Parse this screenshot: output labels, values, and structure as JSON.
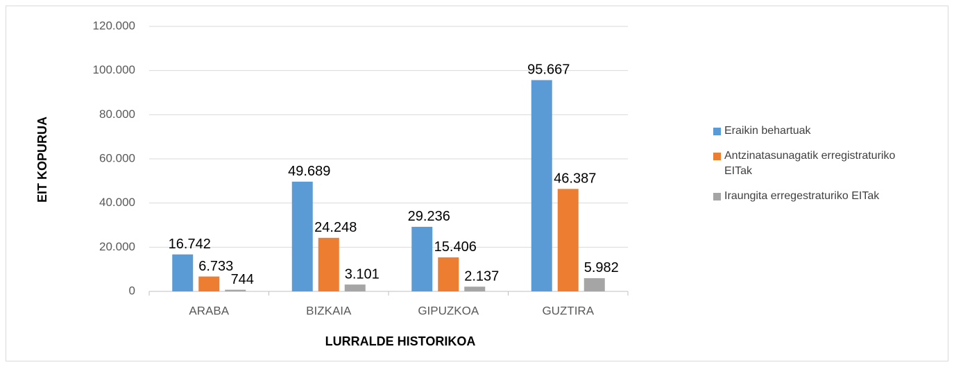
{
  "chart_data": {
    "type": "bar",
    "xlabel": "LURRALDE HISTORIKOA",
    "ylabel": "EIT KOPURUA",
    "categories": [
      "ARABA",
      "BIZKAIA",
      "GIPUZKOA",
      "GUZTIRA"
    ],
    "series": [
      {
        "name": "Eraikin behartuak",
        "color": "#5b9bd5",
        "values": [
          16742,
          49689,
          29236,
          95667
        ],
        "value_labels": [
          "16.742",
          "49.689",
          "29.236",
          "95.667"
        ]
      },
      {
        "name": "Antzinatasunagatik erregistraturiko EITak",
        "color": "#ed7d31",
        "values": [
          6733,
          24248,
          15406,
          46387
        ],
        "value_labels": [
          "6.733",
          "24.248",
          "15.406",
          "46.387"
        ]
      },
      {
        "name": "Iraungita erregestraturiko EITak",
        "color": "#a5a5a5",
        "values": [
          744,
          3101,
          2137,
          5982
        ],
        "value_labels": [
          "744",
          "3.101",
          "2.137",
          "5.982"
        ]
      }
    ],
    "ylim": [
      0,
      120000
    ],
    "yticks": [
      0,
      {
        "value": 20000,
        "label": "20.000"
      },
      {
        "value": 40000,
        "label": "40.000"
      },
      {
        "value": 60000,
        "label": "60.000"
      },
      {
        "value": 80000,
        "label": "80.000"
      },
      {
        "value": 100000,
        "label": "100.000"
      },
      {
        "value": 120000,
        "label": "120.000"
      }
    ],
    "grid": true,
    "legend": "right"
  }
}
